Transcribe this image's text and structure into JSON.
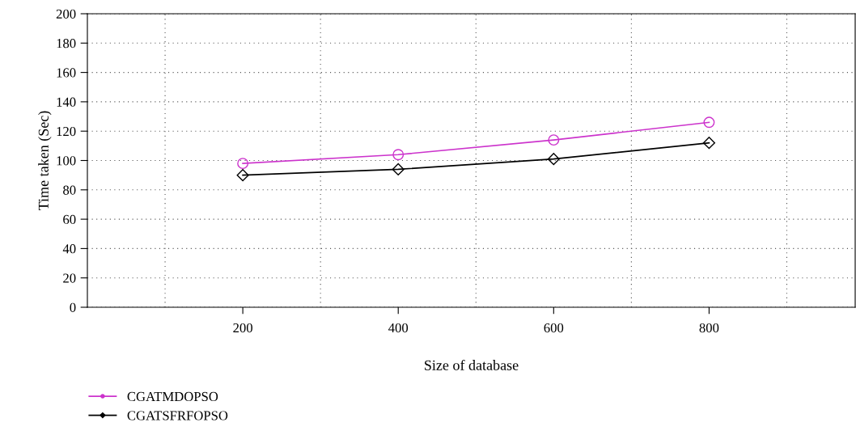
{
  "chart_data": {
    "type": "line",
    "xlabel": "Size of database",
    "ylabel": "Time taken (Sec)",
    "x": [
      200,
      400,
      600,
      800
    ],
    "series": [
      {
        "name": "CGATMDOPSO",
        "color": "#cc33cc",
        "marker": "circle",
        "values": [
          98,
          104,
          114,
          126
        ]
      },
      {
        "name": "CGATSFRFOPSO",
        "color": "#000000",
        "marker": "diamond",
        "values": [
          90,
          94,
          101,
          112
        ]
      }
    ],
    "xlim": [
      0,
      988
    ],
    "xticks": [
      {
        "value": 100,
        "label": null
      },
      200,
      {
        "value": 300,
        "label": null
      },
      400,
      {
        "value": 500,
        "label": null
      },
      600,
      {
        "value": 700,
        "label": null
      },
      800,
      {
        "value": 900,
        "label": null
      }
    ],
    "ylim": [
      0,
      200
    ],
    "yticks": [
      0,
      20,
      40,
      60,
      80,
      100,
      120,
      140,
      160,
      180,
      200
    ],
    "grid": true,
    "legend": "bottom left",
    "line_style": "solid"
  }
}
